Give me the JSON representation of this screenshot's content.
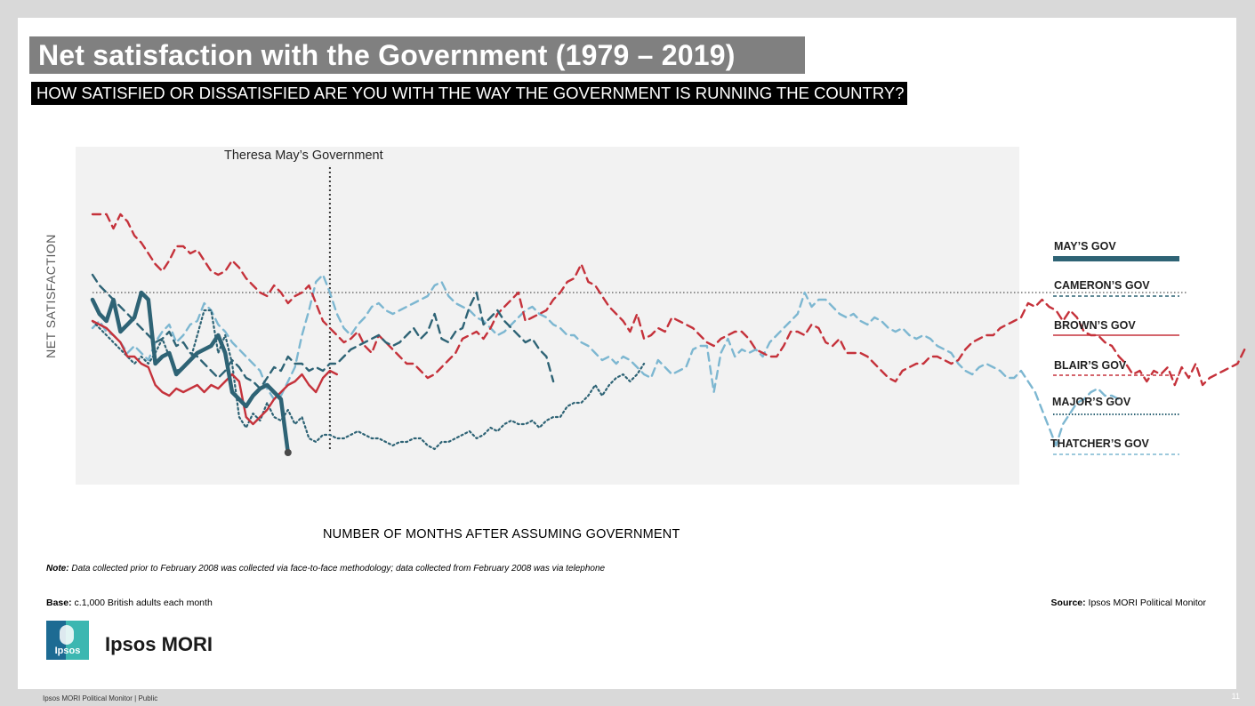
{
  "slide": {
    "title": "Net satisfaction with the Government (1979 – 2019)",
    "question": "HOW SATISFIED OR DISSATISFIED ARE YOU WITH THE WAY THE GOVERNMENT IS RUNNING THE COUNTRY?",
    "note_label": "Note:",
    "note_text": " Data collected prior to February 2008 was collected via face-to-face methodology; data collected from February 2008 was via telephone",
    "base_label": "Base:",
    "base_text": " c.1,000 British adults each month",
    "source_label": "Source:",
    "source_text": " Ipsos MORI Political Monitor",
    "logo_text": "Ipsos",
    "brand": "Ipsos MORI",
    "footer": "Ipsos MORI Political Monitor | Public",
    "page_number": "11"
  },
  "chart_data": {
    "type": "line",
    "title": "",
    "xlabel": "NUMBER OF MONTHS AFTER ASSUMING GOVERNMENT",
    "ylabel": "NET SATISFACTION",
    "x": "months after assuming government (1 – 78)",
    "ylim": [
      -60,
      35
    ],
    "grid": false,
    "zero_line": true,
    "legend_position": "right",
    "annotation": {
      "label": "Theresa May’s Government",
      "x": 34
    },
    "series": [
      {
        "name": "MAY’S GOV",
        "color": "#2e6375",
        "style": "solid-thick",
        "values": [
          -2,
          -6,
          -8,
          -2,
          -11,
          -9,
          -7,
          0,
          -2,
          -20,
          -18,
          -17,
          -23,
          -21,
          -19,
          -17,
          -16,
          -15,
          -12,
          -17,
          -28,
          -30,
          -32,
          -29,
          -27,
          -26,
          -28,
          -30,
          -45
        ]
      },
      {
        "name": "CAMERON’S GOV",
        "color": "#2e6375",
        "style": "dashed",
        "values": [
          5,
          2,
          0,
          -2,
          -4,
          -6,
          -8,
          -10,
          -12,
          -14,
          -13,
          -11,
          -15,
          -14,
          -17,
          -18,
          -20,
          -22,
          -24,
          -22,
          -19,
          -21,
          -24,
          -25,
          -27,
          -24,
          -21,
          -22,
          -18,
          -20,
          -20,
          -22,
          -21,
          -22,
          -20,
          -20,
          -18,
          -16,
          -15,
          -14,
          -13,
          -12,
          -14,
          -15,
          -14,
          -12,
          -10,
          -13,
          -11,
          -6,
          -13,
          -14,
          -11,
          -10,
          -4,
          0,
          -9,
          -7,
          -5,
          -8,
          -10,
          -12,
          -14,
          -13,
          -16,
          -18,
          -25
        ]
      },
      {
        "name": "BROWN’S GOV",
        "color": "#c5323b",
        "style": "solid",
        "values": [
          -8,
          -9,
          -10,
          -12,
          -14,
          -18,
          -18,
          -20,
          -21,
          -26,
          -28,
          -29,
          -27,
          -28,
          -27,
          -26,
          -28,
          -26,
          -27,
          -25,
          -23,
          -25,
          -35,
          -37,
          -35,
          -33,
          -30,
          -28,
          -26,
          -25,
          -23,
          -26,
          -28,
          -24,
          -22,
          -23
        ]
      },
      {
        "name": "BLAIR’S GOV",
        "color": "#c5323b",
        "style": "dashed",
        "values": [
          22,
          22,
          22,
          18,
          22,
          20,
          16,
          14,
          11,
          8,
          6,
          9,
          13,
          13,
          11,
          12,
          9,
          6,
          5,
          6,
          9,
          7,
          4,
          2,
          0,
          -1,
          2,
          0,
          -3,
          -1,
          0,
          2,
          -3,
          -8,
          -10,
          -12,
          -14,
          -13,
          -11,
          -15,
          -17,
          -12,
          -14,
          -16,
          -18,
          -20,
          -20,
          -22,
          -24,
          -23,
          -21,
          -19,
          -17,
          -13,
          -12,
          -11,
          -13,
          -10,
          -6,
          -4,
          -2,
          0,
          -8,
          -7,
          -6,
          -5,
          -2,
          0,
          3,
          4,
          8,
          3,
          2,
          -1,
          -4,
          -6,
          -8,
          -11,
          -6,
          -13,
          -12,
          -10,
          -11,
          -7,
          -8,
          -9,
          -10,
          -12,
          -14,
          -15,
          -13,
          -12,
          -11,
          -11,
          -13,
          -16,
          -17,
          -18,
          -18,
          -15,
          -11,
          -11,
          -12,
          -9,
          -10,
          -14,
          -15,
          -13,
          -17,
          -17,
          -17,
          -18,
          -20,
          -22,
          -24,
          -25,
          -22,
          -21,
          -20,
          -20,
          -18,
          -18,
          -19,
          -20,
          -19,
          -16,
          -14,
          -13,
          -12,
          -12,
          -10,
          -9,
          -8,
          -7,
          -3,
          -4,
          -2,
          -4,
          -5,
          -8,
          -5,
          -7,
          -11,
          -12,
          -12,
          -14,
          -15,
          -18,
          -20,
          -23,
          -22,
          -25,
          -22,
          -23,
          -21,
          -26,
          -21,
          -24,
          -20,
          -26,
          -24,
          -23,
          -22,
          -21,
          -20,
          -16
        ]
      },
      {
        "name": "MAJOR’S GOV",
        "color": "#2e6375",
        "style": "dotted",
        "values": [
          -8,
          -10,
          -12,
          -14,
          -16,
          -18,
          -20,
          -18,
          -20,
          -17,
          -13,
          -18,
          -22,
          -21,
          -19,
          -12,
          -5,
          -5,
          -17,
          -12,
          -20,
          -35,
          -38,
          -34,
          -36,
          -31,
          -35,
          -36,
          -33,
          -37,
          -35,
          -41,
          -42,
          -40,
          -40,
          -41,
          -41,
          -40,
          -39,
          -40,
          -41,
          -41,
          -42,
          -43,
          -42,
          -42,
          -41,
          -41,
          -43,
          -44,
          -42,
          -42,
          -41,
          -40,
          -39,
          -41,
          -40,
          -38,
          -39,
          -37,
          -36,
          -37,
          -37,
          -36,
          -38,
          -36,
          -35,
          -35,
          -32,
          -31,
          -31,
          -29,
          -26,
          -29,
          -26,
          -24,
          -23,
          -25,
          -23,
          -20
        ]
      },
      {
        "name": "THATCHER’S GOV",
        "color": "#7db7d1",
        "style": "dashed",
        "values": [
          -10,
          -8,
          -11,
          -12,
          -14,
          -17,
          -15,
          -17,
          -19,
          -14,
          -11,
          -9,
          -14,
          -12,
          -9,
          -8,
          -3,
          -5,
          -9,
          -11,
          -14,
          -16,
          -18,
          -20,
          -22,
          -27,
          -30,
          -29,
          -25,
          -21,
          -12,
          -5,
          3,
          5,
          0,
          -6,
          -10,
          -12,
          -9,
          -7,
          -4,
          -3,
          -5,
          -6,
          -5,
          -4,
          -3,
          -2,
          -1,
          2,
          3,
          -1,
          -3,
          -4,
          -5,
          -7,
          -8,
          -10,
          -12,
          -11,
          -9,
          -7,
          -5,
          -4,
          -6,
          -7,
          -9,
          -10,
          -12,
          -12,
          -14,
          -15,
          -17,
          -19,
          -18,
          -20,
          -18,
          -19,
          -21,
          -23,
          -24,
          -19,
          -21,
          -23,
          -22,
          -21,
          -16,
          -15,
          -15,
          -28,
          -17,
          -13,
          -18,
          -16,
          -17,
          -16,
          -18,
          -14,
          -12,
          -10,
          -8,
          -6,
          0,
          -4,
          -2,
          -2,
          -4,
          -6,
          -7,
          -6,
          -8,
          -9,
          -7,
          -8,
          -10,
          -11,
          -10,
          -12,
          -13,
          -12,
          -13,
          -15,
          -16,
          -17,
          -20,
          -22,
          -23,
          -21,
          -20,
          -21,
          -22,
          -24,
          -24,
          -22,
          -25,
          -28,
          -33,
          -38,
          -43,
          -37,
          -34,
          -31,
          -30,
          -28,
          -27,
          -29,
          -29,
          -30
        ]
      }
    ]
  }
}
